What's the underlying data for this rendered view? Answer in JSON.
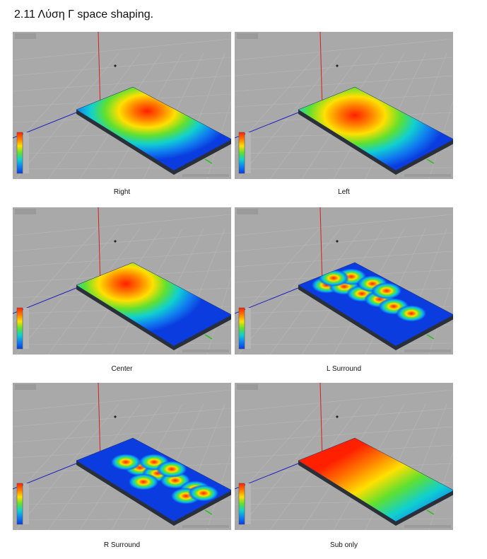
{
  "title": "2.11  Λύση Γ space shaping.",
  "panels": [
    {
      "caption": "Right"
    },
    {
      "caption": "Left"
    },
    {
      "caption": "Center"
    },
    {
      "caption": "L Surround"
    },
    {
      "caption": "R Surround"
    },
    {
      "caption": "Sub only"
    }
  ]
}
